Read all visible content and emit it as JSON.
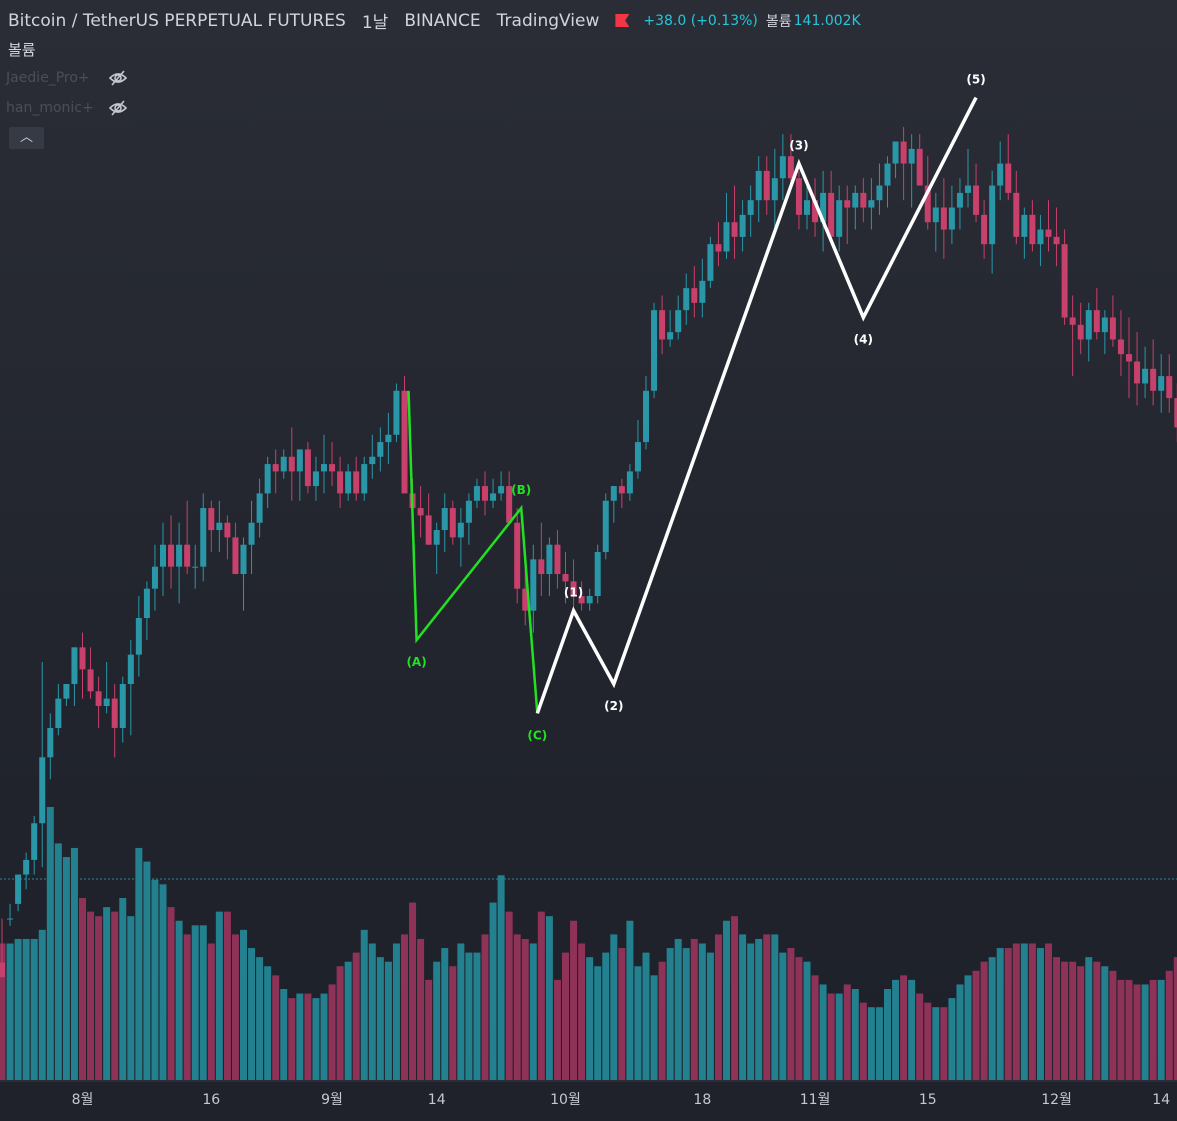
{
  "header": {
    "symbol": "Bitcoin / TetherUS PERPETUAL FUTURES",
    "interval": "1날",
    "exchange": "BINANCE",
    "provider": "TradingView",
    "change": "+38.0 (+0.13%)",
    "volume_label": "볼륨",
    "volume_value": "141.002K"
  },
  "sub_label": "볼륨",
  "indicators": [
    {
      "name": "Jaedie_Pro+"
    },
    {
      "name": "han_monic+"
    }
  ],
  "colors": {
    "up": "#2a97a9",
    "down": "#c8406c",
    "wave_abc": "#22e022",
    "wave_impulse": "#ffffff",
    "volume_up": "#22808f",
    "volume_down": "#8e3258"
  },
  "chart_data": {
    "type": "candlestick",
    "x_ticks": [
      "8월",
      "16",
      "9월",
      "14",
      "10월",
      "18",
      "11월",
      "15",
      "12월",
      "14"
    ],
    "x_tick_index": [
      10,
      26,
      41,
      54,
      70,
      87,
      101,
      115,
      131,
      144
    ],
    "candle_count": 147,
    "candles": [
      [
        -4.4,
        -3.8,
        -4.6,
        -4.6
      ],
      [
        -3.8,
        -3.6,
        -3.9,
        -3.8
      ],
      [
        -3.6,
        -3.2,
        -3.7,
        -3.2
      ],
      [
        -3.2,
        -2.9,
        -3.4,
        -3.0
      ],
      [
        -3.0,
        -2.4,
        -3.2,
        -2.5
      ],
      [
        -2.5,
        -0.3,
        -3.1,
        -1.6
      ],
      [
        -1.6,
        -1.0,
        -1.9,
        -1.2
      ],
      [
        -1.2,
        -0.6,
        -1.3,
        -0.8
      ],
      [
        -0.8,
        -0.6,
        -0.9,
        -0.6
      ],
      [
        -0.6,
        -0.1,
        -0.9,
        -0.1
      ],
      [
        -0.1,
        0.1,
        -0.8,
        -0.4
      ],
      [
        -0.4,
        -0.1,
        -0.8,
        -0.7
      ],
      [
        -0.7,
        -0.5,
        -1.2,
        -0.9
      ],
      [
        -0.9,
        -0.3,
        -1.0,
        -0.8
      ],
      [
        -0.8,
        -0.6,
        -1.6,
        -1.2
      ],
      [
        -1.2,
        -0.5,
        -1.4,
        -0.6
      ],
      [
        -0.6,
        0.0,
        -1.3,
        -0.2
      ],
      [
        -0.2,
        0.6,
        -0.5,
        0.3
      ],
      [
        0.3,
        0.8,
        0.0,
        0.7
      ],
      [
        0.7,
        1.3,
        0.4,
        1.0
      ],
      [
        1.0,
        1.6,
        0.6,
        1.3
      ],
      [
        1.3,
        1.7,
        0.7,
        1.0
      ],
      [
        1.0,
        1.6,
        0.5,
        1.3
      ],
      [
        1.3,
        1.9,
        0.9,
        1.0
      ],
      [
        1.0,
        1.3,
        0.7,
        1.0
      ],
      [
        1.0,
        2.0,
        0.8,
        1.8
      ],
      [
        1.8,
        1.9,
        1.2,
        1.5
      ],
      [
        1.5,
        1.9,
        1.2,
        1.6
      ],
      [
        1.6,
        1.7,
        1.1,
        1.4
      ],
      [
        1.4,
        1.6,
        0.9,
        0.9
      ],
      [
        0.9,
        1.4,
        0.4,
        1.3
      ],
      [
        1.3,
        1.9,
        0.9,
        1.6
      ],
      [
        1.6,
        2.2,
        1.4,
        2.0
      ],
      [
        2.0,
        2.5,
        1.8,
        2.4
      ],
      [
        2.4,
        2.6,
        2.0,
        2.3
      ],
      [
        2.3,
        2.6,
        2.2,
        2.5
      ],
      [
        2.5,
        2.9,
        1.9,
        2.3
      ],
      [
        2.3,
        2.6,
        1.9,
        2.6
      ],
      [
        2.6,
        2.7,
        2.0,
        2.1
      ],
      [
        2.1,
        2.5,
        1.9,
        2.3
      ],
      [
        2.3,
        2.8,
        2.0,
        2.4
      ],
      [
        2.4,
        2.7,
        2.1,
        2.3
      ],
      [
        2.3,
        2.5,
        1.8,
        2.0
      ],
      [
        2.0,
        2.4,
        1.9,
        2.3
      ],
      [
        2.3,
        2.5,
        1.9,
        2.0
      ],
      [
        2.0,
        2.5,
        1.9,
        2.4
      ],
      [
        2.4,
        2.8,
        2.2,
        2.5
      ],
      [
        2.5,
        2.9,
        2.3,
        2.7
      ],
      [
        2.7,
        3.1,
        2.4,
        2.8
      ],
      [
        2.8,
        3.5,
        2.7,
        3.4
      ],
      [
        3.4,
        3.6,
        2.0,
        2.0
      ],
      [
        2.0,
        2.2,
        1.6,
        1.8
      ],
      [
        1.8,
        2.1,
        1.4,
        1.7
      ],
      [
        1.7,
        2.0,
        1.3,
        1.3
      ],
      [
        1.3,
        1.6,
        0.9,
        1.5
      ],
      [
        1.5,
        2.0,
        1.2,
        1.8
      ],
      [
        1.8,
        1.9,
        1.3,
        1.4
      ],
      [
        1.4,
        1.8,
        1.0,
        1.6
      ],
      [
        1.6,
        2.0,
        1.3,
        1.9
      ],
      [
        1.9,
        2.2,
        1.8,
        2.1
      ],
      [
        2.1,
        2.3,
        1.7,
        1.9
      ],
      [
        1.9,
        2.2,
        1.8,
        2.0
      ],
      [
        2.0,
        2.3,
        1.9,
        2.1
      ],
      [
        2.1,
        2.3,
        1.6,
        1.6
      ],
      [
        1.6,
        1.8,
        0.5,
        0.7
      ],
      [
        0.7,
        1.2,
        0.2,
        0.4
      ],
      [
        0.4,
        1.3,
        0.1,
        1.1
      ],
      [
        1.1,
        1.6,
        0.6,
        0.9
      ],
      [
        0.9,
        1.4,
        0.6,
        1.3
      ],
      [
        1.3,
        1.5,
        0.7,
        0.9
      ],
      [
        0.9,
        1.2,
        0.5,
        0.8
      ],
      [
        0.8,
        1.1,
        0.4,
        0.6
      ],
      [
        0.6,
        0.8,
        0.4,
        0.5
      ],
      [
        0.5,
        0.7,
        0.4,
        0.6
      ],
      [
        0.6,
        1.3,
        0.5,
        1.2
      ],
      [
        1.2,
        2.0,
        1.1,
        1.9
      ],
      [
        1.9,
        2.1,
        1.6,
        2.1
      ],
      [
        2.1,
        2.2,
        1.8,
        2.0
      ],
      [
        2.0,
        2.4,
        1.9,
        2.3
      ],
      [
        2.3,
        3.0,
        2.2,
        2.7
      ],
      [
        2.7,
        3.6,
        2.6,
        3.4
      ],
      [
        3.4,
        4.6,
        3.3,
        4.5
      ],
      [
        4.5,
        4.7,
        3.9,
        4.1
      ],
      [
        4.1,
        4.5,
        4.0,
        4.2
      ],
      [
        4.2,
        4.7,
        4.1,
        4.5
      ],
      [
        4.5,
        5.0,
        4.3,
        4.8
      ],
      [
        4.8,
        5.1,
        4.4,
        4.6
      ],
      [
        4.6,
        5.2,
        4.4,
        4.9
      ],
      [
        4.9,
        5.5,
        4.8,
        5.4
      ],
      [
        5.4,
        5.7,
        5.1,
        5.3
      ],
      [
        5.3,
        6.1,
        5.2,
        5.7
      ],
      [
        5.7,
        6.2,
        5.2,
        5.5
      ],
      [
        5.5,
        6.0,
        5.3,
        5.8
      ],
      [
        5.8,
        6.2,
        5.5,
        6.0
      ],
      [
        6.0,
        6.6,
        5.7,
        6.4
      ],
      [
        6.4,
        6.6,
        5.8,
        6.0
      ],
      [
        6.0,
        6.7,
        5.6,
        6.3
      ],
      [
        6.3,
        6.9,
        6.0,
        6.6
      ],
      [
        6.6,
        6.9,
        6.2,
        6.3
      ],
      [
        6.3,
        6.4,
        5.6,
        5.8
      ],
      [
        5.8,
        6.2,
        5.6,
        6.0
      ],
      [
        6.0,
        6.3,
        5.5,
        5.7
      ],
      [
        5.7,
        6.4,
        5.3,
        6.1
      ],
      [
        6.1,
        6.4,
        5.4,
        5.5
      ],
      [
        5.5,
        6.2,
        5.3,
        6.0
      ],
      [
        6.0,
        6.2,
        5.4,
        5.9
      ],
      [
        5.9,
        6.2,
        5.6,
        6.1
      ],
      [
        6.1,
        6.3,
        5.7,
        5.9
      ],
      [
        5.9,
        6.3,
        5.6,
        6.0
      ],
      [
        6.0,
        6.5,
        5.8,
        6.2
      ],
      [
        6.2,
        6.6,
        5.9,
        6.5
      ],
      [
        6.5,
        6.8,
        6.3,
        6.8
      ],
      [
        6.8,
        7.0,
        6.0,
        6.5
      ],
      [
        6.5,
        6.9,
        5.9,
        6.7
      ],
      [
        6.7,
        6.9,
        6.2,
        6.2
      ],
      [
        6.2,
        6.6,
        5.6,
        5.7
      ],
      [
        5.7,
        6.1,
        5.3,
        5.9
      ],
      [
        5.9,
        6.3,
        5.2,
        5.6
      ],
      [
        5.6,
        6.2,
        5.4,
        5.9
      ],
      [
        5.9,
        6.3,
        5.6,
        6.1
      ],
      [
        6.1,
        6.7,
        5.9,
        6.2
      ],
      [
        6.2,
        6.5,
        5.7,
        5.8
      ],
      [
        5.8,
        6.0,
        5.2,
        5.4
      ],
      [
        5.4,
        6.4,
        5.0,
        6.2
      ],
      [
        6.2,
        6.8,
        6.0,
        6.5
      ],
      [
        6.5,
        6.9,
        6.0,
        6.1
      ],
      [
        6.1,
        6.4,
        5.4,
        5.5
      ],
      [
        5.5,
        5.9,
        5.2,
        5.8
      ],
      [
        5.8,
        6.0,
        5.3,
        5.4
      ],
      [
        5.4,
        5.8,
        5.1,
        5.6
      ],
      [
        5.6,
        6.0,
        5.3,
        5.5
      ],
      [
        5.5,
        5.9,
        5.1,
        5.4
      ],
      [
        5.4,
        5.6,
        4.3,
        4.4
      ],
      [
        4.4,
        4.7,
        3.6,
        4.3
      ],
      [
        4.3,
        4.6,
        3.9,
        4.1
      ],
      [
        4.1,
        4.6,
        3.8,
        4.5
      ],
      [
        4.5,
        4.8,
        4.1,
        4.2
      ],
      [
        4.2,
        4.5,
        3.9,
        4.4
      ],
      [
        4.4,
        4.7,
        4.0,
        4.1
      ],
      [
        4.1,
        4.5,
        3.6,
        3.9
      ],
      [
        3.9,
        4.4,
        3.3,
        3.8
      ],
      [
        3.8,
        4.2,
        3.2,
        3.5
      ],
      [
        3.5,
        4.0,
        3.3,
        3.7
      ],
      [
        3.7,
        4.1,
        3.2,
        3.4
      ],
      [
        3.4,
        3.9,
        3.1,
        3.6
      ],
      [
        3.6,
        3.9,
        3.1,
        3.3
      ],
      [
        3.3,
        3.5,
        2.7,
        2.9
      ]
    ],
    "volumes": [
      30,
      30,
      31,
      31,
      31,
      33,
      60,
      52,
      49,
      51,
      40,
      37,
      36,
      38,
      37,
      40,
      36,
      51,
      48,
      44,
      43,
      38,
      35,
      32,
      34,
      34,
      30,
      37,
      37,
      32,
      33,
      29,
      27,
      25,
      23,
      20,
      18,
      19,
      19,
      18,
      19,
      21,
      25,
      26,
      28,
      33,
      30,
      27,
      26,
      30,
      32,
      39,
      31,
      22,
      26,
      29,
      25,
      30,
      28,
      28,
      32,
      39,
      45,
      37,
      32,
      31,
      30,
      37,
      36,
      22,
      28,
      35,
      30,
      27,
      25,
      28,
      32,
      29,
      35,
      25,
      28,
      23,
      26,
      29,
      31,
      29,
      31,
      30,
      28,
      32,
      35,
      36,
      32,
      30,
      31,
      32,
      32,
      28,
      29,
      27,
      26,
      23,
      21,
      19,
      19,
      21,
      20,
      17,
      16,
      16,
      20,
      22,
      23,
      22,
      19,
      17,
      16,
      16,
      18,
      21,
      23,
      24,
      26,
      27,
      29,
      29,
      30,
      30,
      30,
      29,
      30,
      27,
      26,
      26,
      25,
      27,
      26,
      25,
      24,
      22,
      22,
      21,
      21,
      22,
      22,
      24,
      27
    ],
    "volume_dir": "same-as-candle",
    "wave_labels": {
      "abc": [
        {
          "label": "(A)",
          "index": 51.5
        },
        {
          "label": "(B)",
          "index": 64.5
        },
        {
          "label": "(C)",
          "index": 66.5
        }
      ],
      "impulse": [
        {
          "label": "(1)",
          "index": 71
        },
        {
          "label": "(2)",
          "index": 76
        },
        {
          "label": "(3)",
          "index": 99
        },
        {
          "label": "(4)",
          "index": 107
        },
        {
          "label": "(5)",
          "index": 121
        }
      ]
    },
    "wave_path_abc": [
      [
        50.5,
        3.4
      ],
      [
        51.5,
        0.0
      ],
      [
        64.5,
        1.8
      ],
      [
        66.5,
        -1.0
      ]
    ],
    "wave_path_impulse": [
      [
        66.5,
        -1.0
      ],
      [
        71,
        0.4
      ],
      [
        76,
        -0.6
      ],
      [
        99,
        6.5
      ],
      [
        107,
        4.4
      ],
      [
        121,
        7.4
      ]
    ]
  }
}
